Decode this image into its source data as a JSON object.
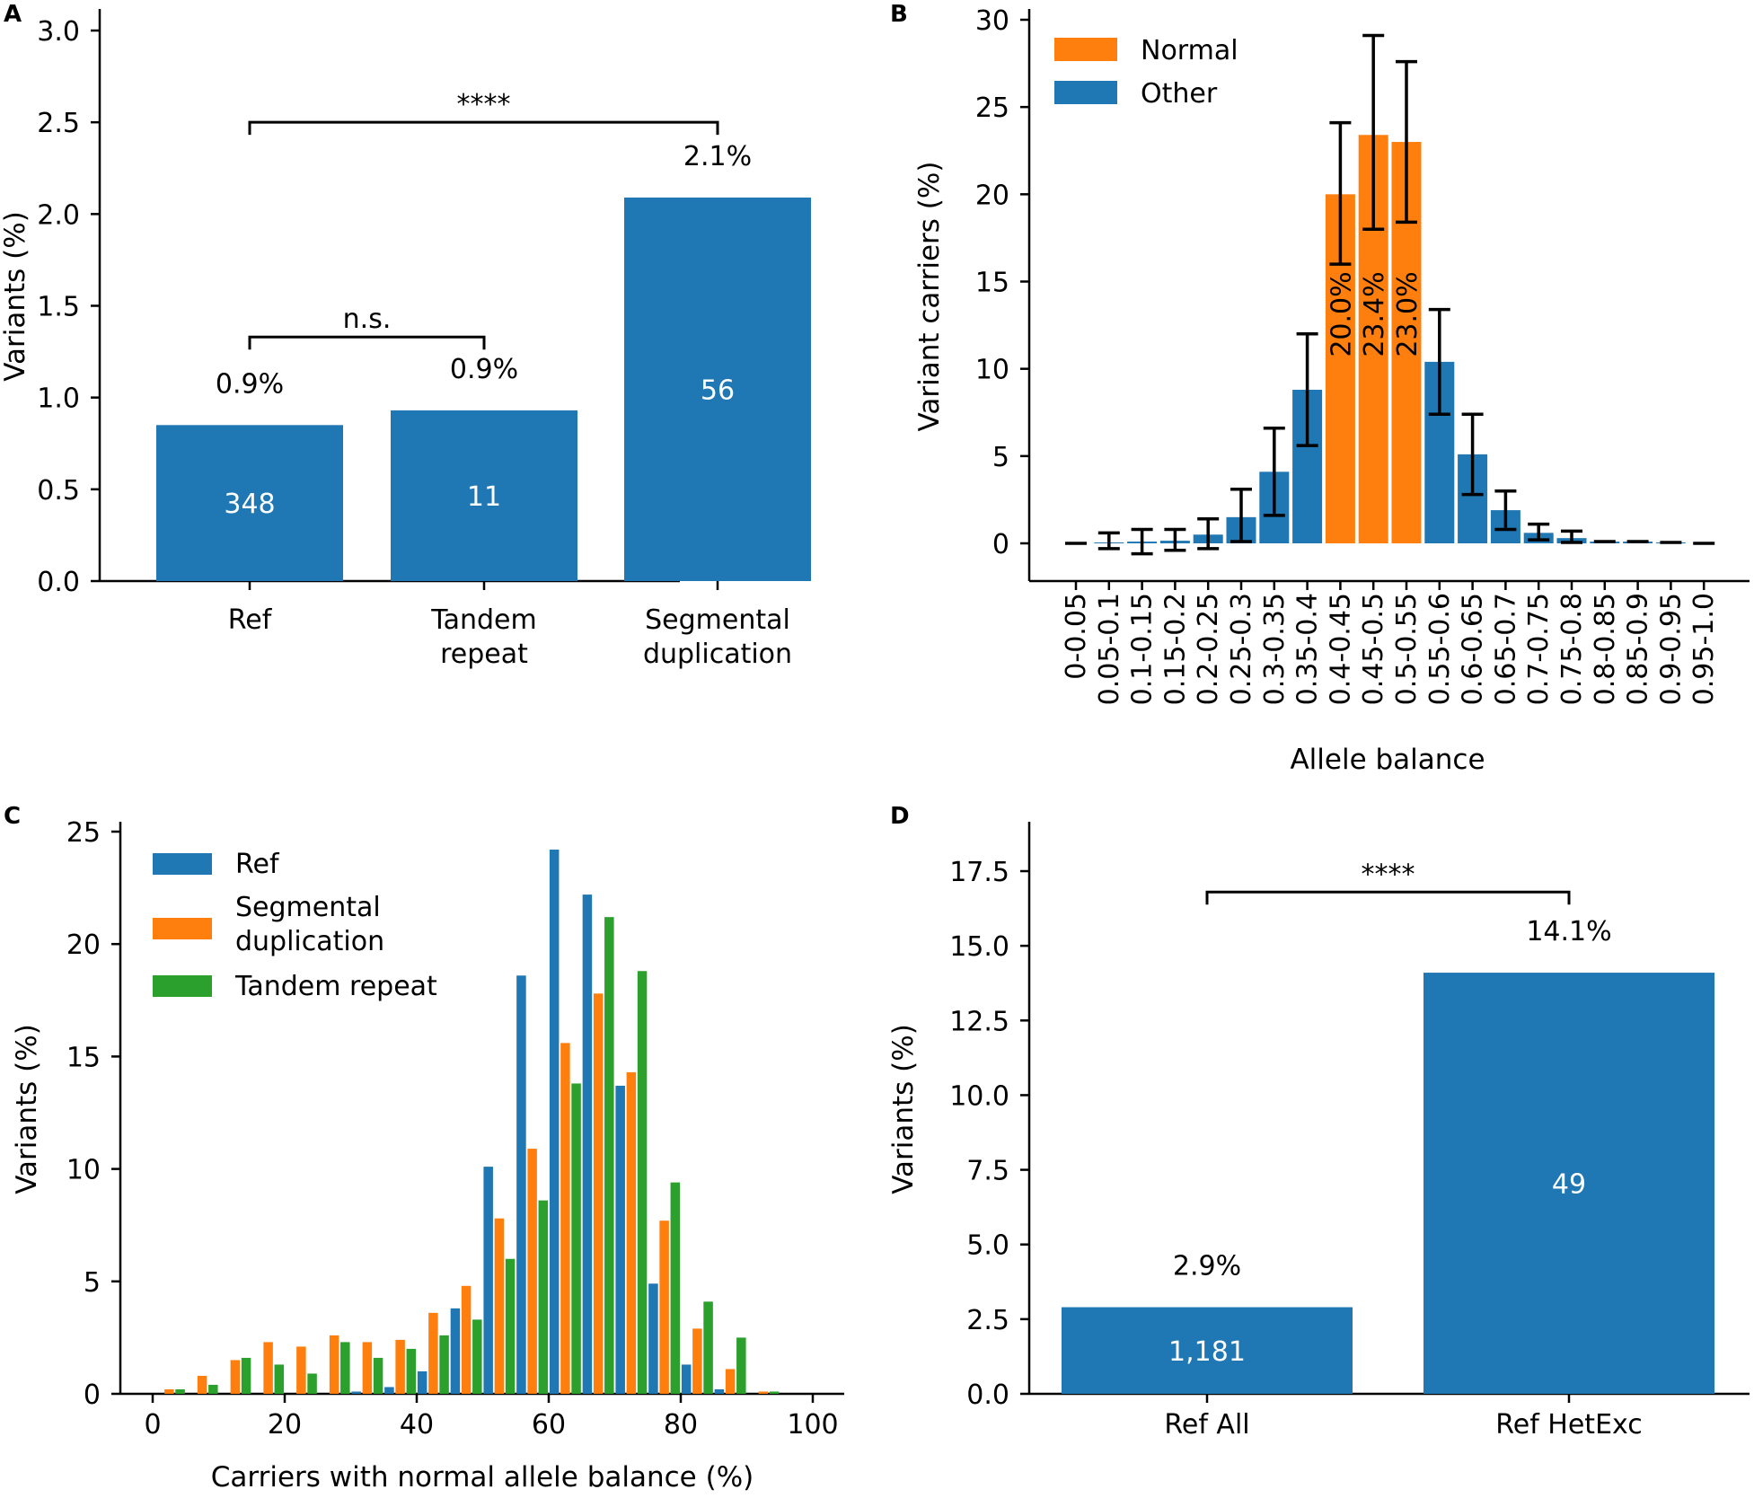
{
  "colors": {
    "blue": "#1f77b4",
    "orange": "#ff7f0e",
    "green": "#2ca02c"
  },
  "chart_data": [
    {
      "panel": "A",
      "type": "bar",
      "ylabel": "Variants (%)",
      "ylim": [
        0,
        3.0
      ],
      "yticks": [
        "0.0",
        "0.5",
        "1.0",
        "1.5",
        "2.0",
        "2.5",
        "3.0"
      ],
      "categories": [
        [
          "Ref"
        ],
        [
          "Tandem",
          "repeat"
        ],
        [
          "Segmental",
          "duplication"
        ]
      ],
      "values": [
        0.85,
        0.93,
        2.09
      ],
      "pct_labels": [
        "0.9%",
        "0.9%",
        "2.1%"
      ],
      "count_labels": [
        "348",
        "11",
        "56"
      ],
      "significance": [
        {
          "from": 0,
          "to": 1,
          "level": 1.33,
          "label": "n.s."
        },
        {
          "from": 0,
          "to": 2,
          "level": 2.5,
          "label": "****"
        }
      ]
    },
    {
      "panel": "B",
      "type": "bar",
      "xlabel": "Allele balance",
      "ylabel": "Variant carriers (%)",
      "ylim": [
        0,
        30
      ],
      "yticks": [
        "0",
        "5",
        "10",
        "15",
        "20",
        "25",
        "30"
      ],
      "categories": [
        "0-0.05",
        "0.05-0.1",
        "0.1-0.15",
        "0.15-0.2",
        "0.2-0.25",
        "0.25-0.3",
        "0.3-0.35",
        "0.35-0.4",
        "0.4-0.45",
        "0.45-0.5",
        "0.5-0.55",
        "0.55-0.6",
        "0.6-0.65",
        "0.65-0.7",
        "0.7-0.75",
        "0.75-0.8",
        "0.8-0.85",
        "0.85-0.9",
        "0.9-0.95",
        "0.95-1.0"
      ],
      "values": [
        0,
        0.05,
        0.1,
        0.15,
        0.5,
        1.5,
        4.1,
        8.8,
        20.0,
        23.4,
        23.0,
        10.4,
        5.1,
        1.9,
        0.6,
        0.3,
        0.1,
        0.1,
        0.05,
        0
      ],
      "err_low": [
        0,
        -0.3,
        -0.6,
        -0.4,
        -0.3,
        0.1,
        1.6,
        5.6,
        16.0,
        18.0,
        18.4,
        7.4,
        2.8,
        0.8,
        0.2,
        0.05,
        0,
        0,
        0,
        0
      ],
      "err_high": [
        0,
        0.6,
        0.8,
        0.8,
        1.4,
        3.1,
        6.6,
        12.0,
        24.1,
        29.1,
        27.6,
        13.4,
        7.4,
        3.0,
        1.1,
        0.7,
        0.3,
        0.2,
        0.1,
        0
      ],
      "groups": [
        "Other",
        "Other",
        "Other",
        "Other",
        "Other",
        "Other",
        "Other",
        "Other",
        "Normal",
        "Normal",
        "Normal",
        "Other",
        "Other",
        "Other",
        "Other",
        "Other",
        "Other",
        "Other",
        "Other",
        "Other"
      ],
      "bar_labels": [
        "",
        "",
        "",
        "",
        "",
        "",
        "",
        "",
        "20.0%",
        "23.4%",
        "23.0%",
        "",
        "",
        "",
        "",
        "",
        "",
        "",
        "",
        ""
      ],
      "legend": [
        {
          "name": "Normal",
          "color": "#ff7f0e"
        },
        {
          "name": "Other",
          "color": "#1f77b4"
        }
      ]
    },
    {
      "panel": "C",
      "type": "bar",
      "xlabel": "Carriers with normal allele balance (%)",
      "ylabel": "Variants (%)",
      "xlim": [
        -3,
        105
      ],
      "ylim": [
        0,
        25
      ],
      "xticks": [
        "0",
        "20",
        "40",
        "60",
        "80",
        "100"
      ],
      "yticks": [
        "0",
        "5",
        "10",
        "15",
        "20",
        "25"
      ],
      "bin_centers": [
        2.5,
        7.5,
        12.5,
        17.5,
        22.5,
        27.5,
        32.5,
        37.5,
        42.5,
        47.5,
        52.5,
        57.5,
        62.5,
        67.5,
        72.5,
        77.5,
        82.5,
        87.5,
        92.5,
        97.5
      ],
      "series": [
        {
          "name": "Ref",
          "color": "#1f77b4",
          "values": [
            0,
            0,
            0,
            0,
            0,
            0,
            0.1,
            0.3,
            1.0,
            3.8,
            10.1,
            18.6,
            24.2,
            22.2,
            13.7,
            4.9,
            1.3,
            0.2,
            0,
            0
          ]
        },
        {
          "name": "Segmental duplication",
          "color": "#ff7f0e",
          "values": [
            0.2,
            0.8,
            1.5,
            2.3,
            2.1,
            2.6,
            2.3,
            2.4,
            3.6,
            4.8,
            7.8,
            10.9,
            15.6,
            17.8,
            14.3,
            7.7,
            2.9,
            1.1,
            0.1,
            0
          ]
        },
        {
          "name": "Tandem repeat",
          "color": "#2ca02c",
          "values": [
            0.2,
            0.4,
            1.6,
            1.3,
            0.9,
            2.3,
            1.6,
            2.0,
            2.6,
            3.3,
            6.0,
            8.6,
            13.8,
            21.2,
            18.8,
            9.4,
            4.1,
            2.5,
            0.1,
            0
          ]
        }
      ],
      "legend_labels": [
        "Ref",
        "Segmental",
        "duplication",
        "Tandem repeat"
      ]
    },
    {
      "panel": "D",
      "type": "bar",
      "ylabel": "Variants (%)",
      "ylim": [
        0,
        19
      ],
      "yticks": [
        "0.0",
        "2.5",
        "5.0",
        "7.5",
        "10.0",
        "12.5",
        "15.0",
        "17.5"
      ],
      "categories": [
        "Ref All",
        "Ref HetExc"
      ],
      "values": [
        2.9,
        14.1
      ],
      "pct_labels": [
        "2.9%",
        "14.1%"
      ],
      "count_labels": [
        "1,181",
        "49"
      ],
      "significance": [
        {
          "from": 0,
          "to": 1,
          "level": 16.8,
          "label": "****"
        }
      ]
    }
  ]
}
